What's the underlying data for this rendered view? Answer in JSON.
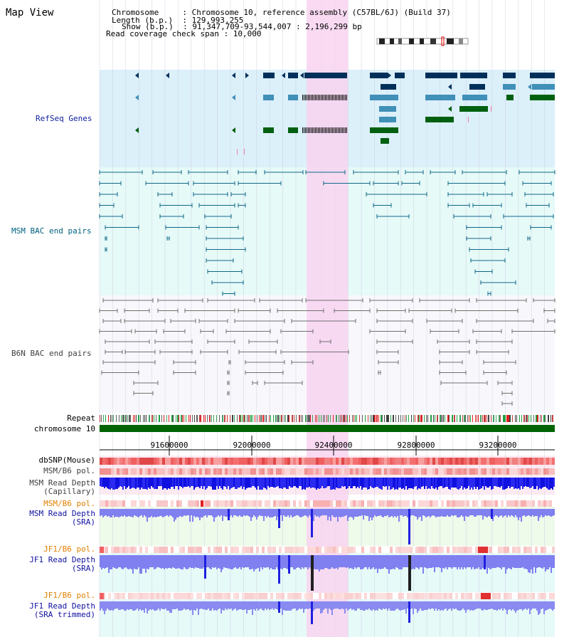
{
  "view": {
    "title": "Map View",
    "header_lines": [
      "Chromosome     : Chromosome 10, reference assembly (C57BL/6J) (Build 37)",
      "Length (b.p.)  : 129,993,255",
      "Show (b.p.)  : 91,347,709-93,544,007 : 2,196,299 bp",
      "Read coverage check span : 10,000"
    ]
  },
  "colors": {
    "refseq_bg": "#dcf0fa",
    "bac_bg": "#e6faf8",
    "highlight": "#f8d4f0",
    "grid": "#c8c8dc",
    "msm_label": "#006080",
    "gene_dark": "#00305a",
    "gene_mid": "#4090b8",
    "gene_green": "#006010",
    "chromosome": "#006400",
    "read_depth": "#2020f0",
    "sra_depth": "#8080f0",
    "orange_label": "#e08000"
  },
  "tracks": {
    "refseq": "RefSeq Genes",
    "msm_bac": "MSM BAC end pairs",
    "b6n_bac": "B6N BAC end pairs",
    "repeat": "Repeat",
    "chromosome": "chromosome 10",
    "dbsnp": "dbSNP(Mouse)",
    "msm_b6_pol": "MSM/B6 pol.",
    "msm_depth_cap_1": "MSM Read Depth",
    "msm_depth_cap_2": "(Capillary)",
    "msm_b6_pol2": "MSM/B6 pol.",
    "msm_depth_sra_1": "MSM Read Depth",
    "msm_depth_sra_2": "(SRA)",
    "jf1_pol": "JF1/B6 pol.",
    "jf1_depth_sra_1": "JF1 Read Depth",
    "jf1_depth_sra_2": "(SRA)",
    "jf1_pol2": "JF1/B6 pol.",
    "jf1_depth_trim_1": "JF1 Read Depth",
    "jf1_depth_trim_2": "(SRA trimmed)"
  },
  "axis": {
    "ticks": [
      "91600000",
      "92000000",
      "92400000",
      "92800000",
      "93200000"
    ]
  }
}
